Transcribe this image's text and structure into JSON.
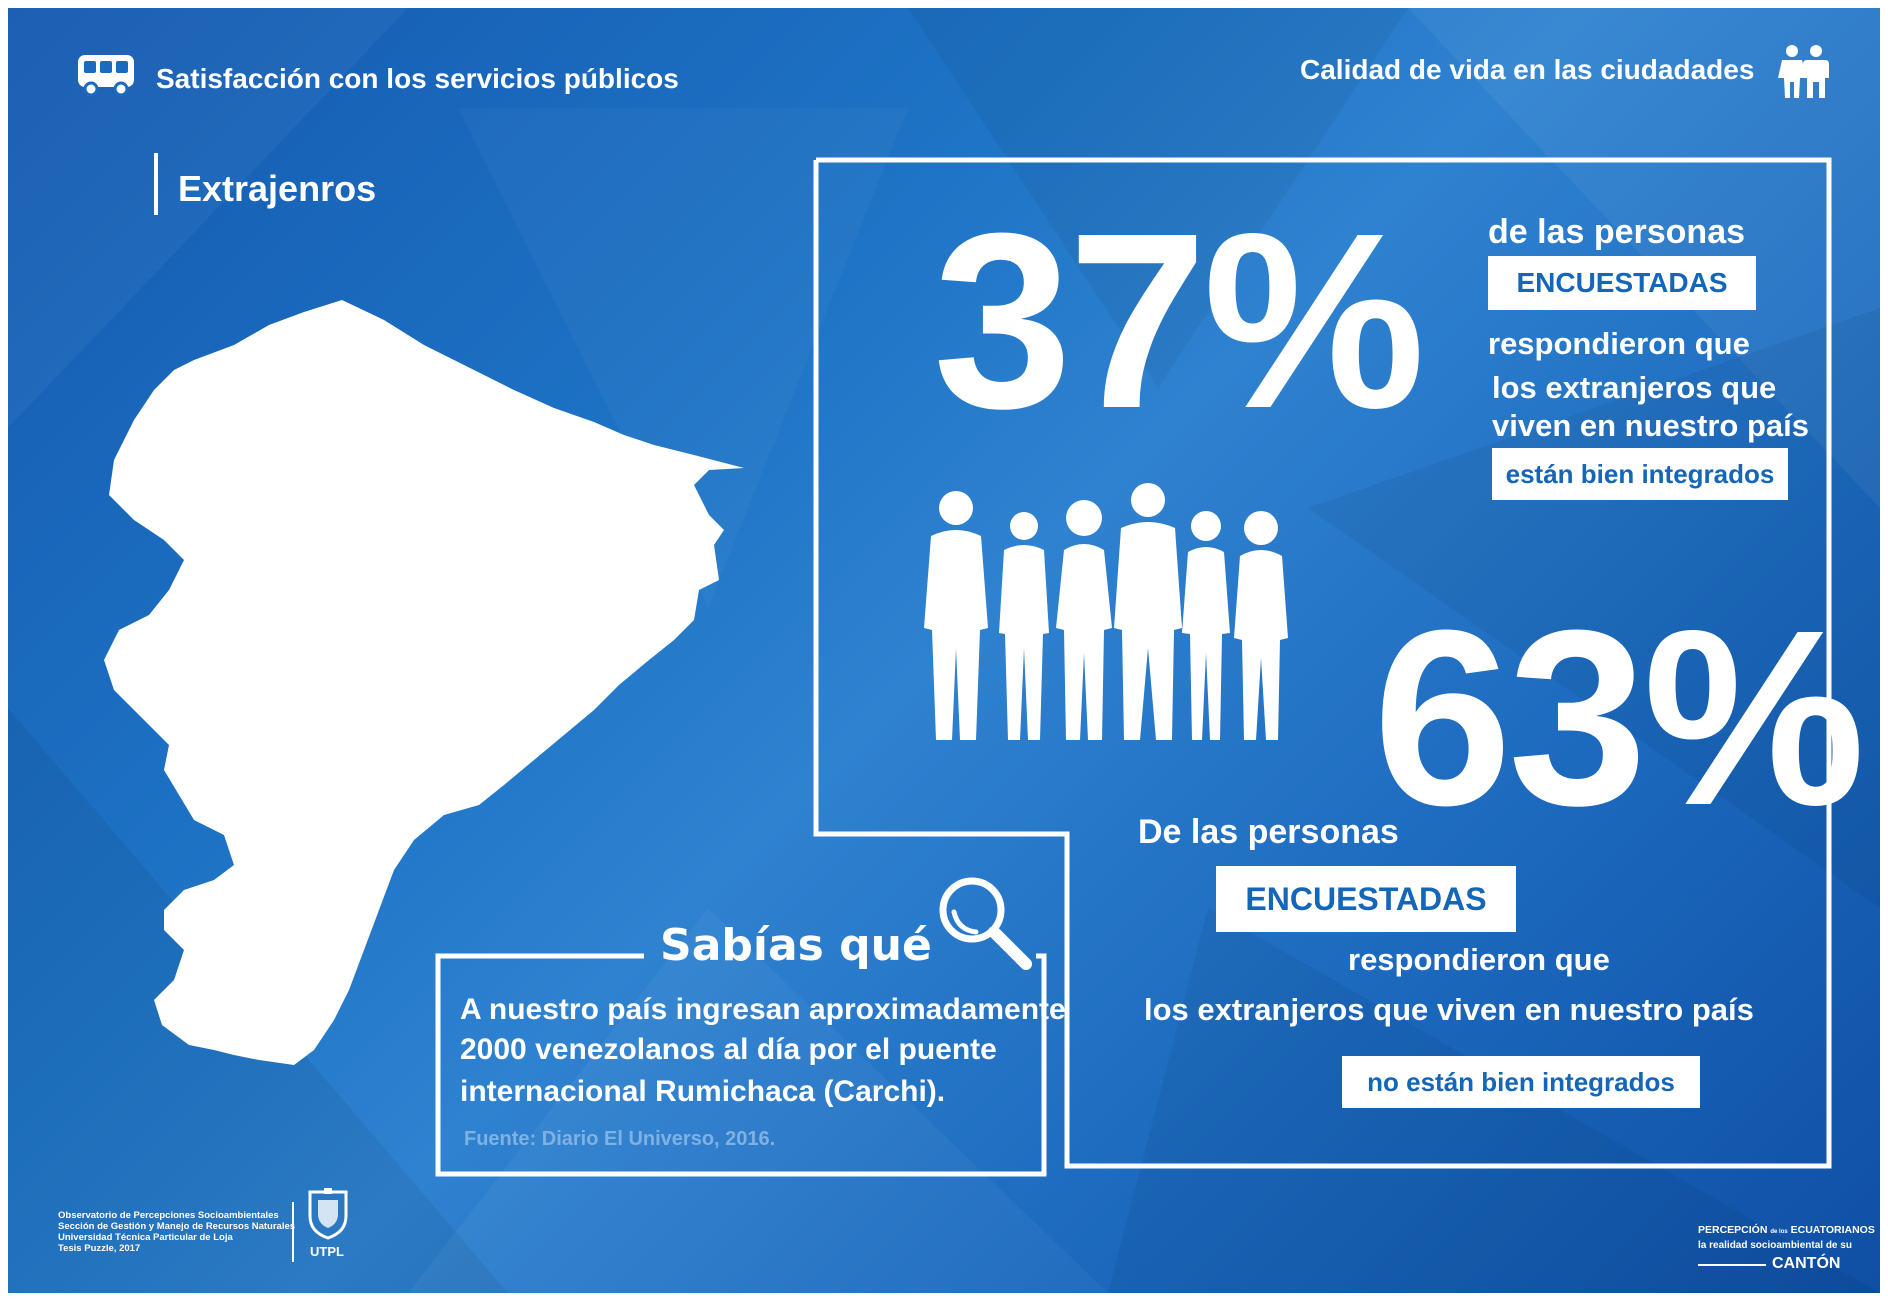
{
  "header": {
    "left_title": "Satisfacción con los servicios públicos",
    "right_title": "Calidad de vida en las ciudadades"
  },
  "section_title": "Extrajenros",
  "stat_top": {
    "value": "37%",
    "line1": "de las personas",
    "badge": "ENCUESTADAS",
    "line2": "respondieron que",
    "line3": "los extranjeros que",
    "line4": "viven en nuestro país",
    "highlight": "están bien integrados"
  },
  "stat_bottom": {
    "value": "63%",
    "line1": "De las personas",
    "badge": "ENCUESTADAS",
    "line2": "respondieron que",
    "line3": "los extranjeros que viven en nuestro país",
    "highlight": "no están bien integrados"
  },
  "did_you_know": {
    "title": "Sabías qué",
    "line1": "A nuestro país ingresan aproximadamente",
    "line2": "2000 venezolanos al día por el puente",
    "line3": "internacional Rumichaca (Carchi).",
    "source": "Fuente: Diario El Universo, 2016."
  },
  "footer": {
    "org_line1": "Observatorio de Percepciones Socioambientales",
    "org_line2": "Sección de Gestión y Manejo de Recursos Naturales",
    "org_line3": "Universidad Técnica Particular de Loja",
    "org_line4": "Tesis Puzzle, 2017",
    "utpl": "UTPL",
    "brand_line1": "PERCEPCIÓN",
    "brand_de": "de los",
    "brand_line1b": "ECUATORIANOS",
    "brand_line2": "la realidad socioambiental de su",
    "brand_line3": "CANTÓN"
  },
  "icons": [
    "bus-icon",
    "people-couple-icon",
    "magnifier-icon",
    "ecuador-map",
    "people-silhouettes",
    "utpl-shield-logo"
  ],
  "colors": {
    "background": "#1a6bc0",
    "accent": "#1466b8",
    "foreground": "#ffffff"
  }
}
